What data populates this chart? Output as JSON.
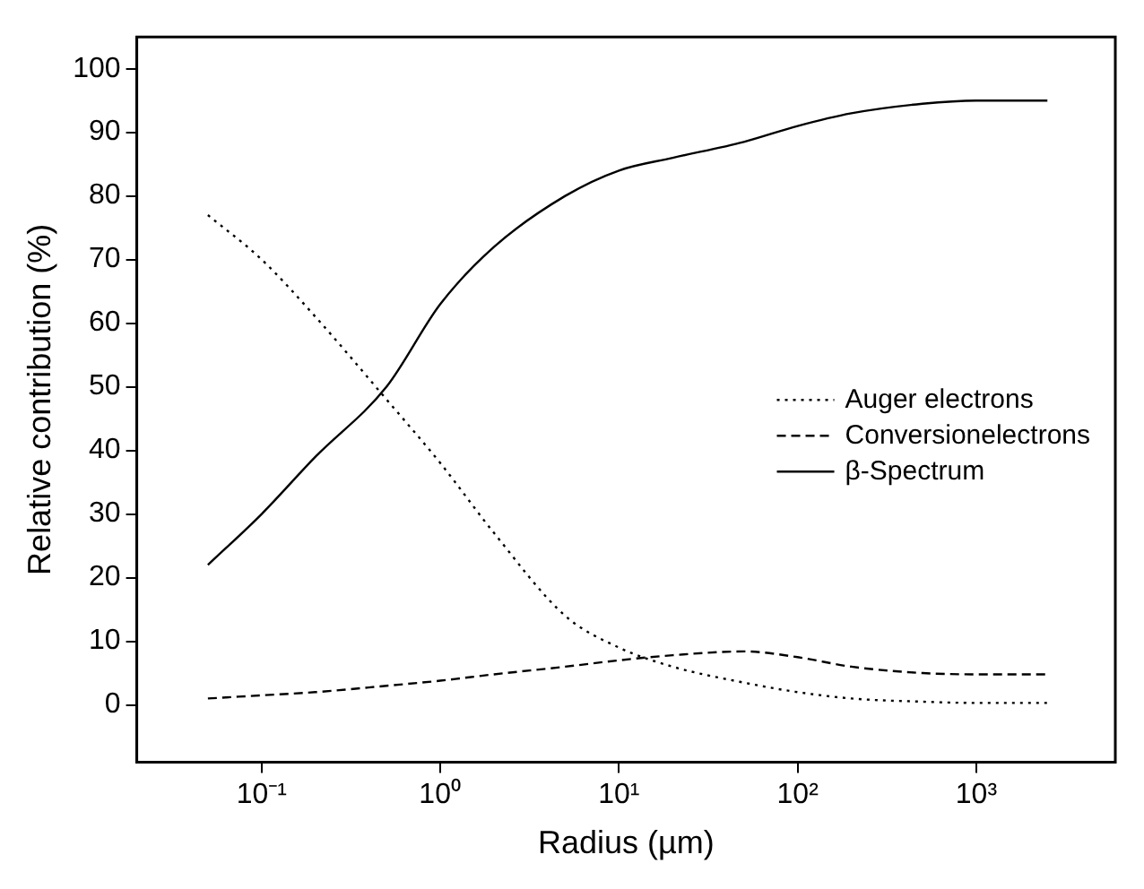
{
  "chart_data": {
    "type": "line",
    "xlabel": "Radius (µm)",
    "ylabel": "Relative contribution (%)",
    "log": "x",
    "grid": false,
    "legend": "right",
    "marker": "none",
    "x": [
      0.05,
      0.1,
      0.2,
      0.5,
      1,
      2,
      5,
      10,
      20,
      50,
      100,
      200,
      500,
      1000,
      2500
    ],
    "series": [
      {
        "name": "Auger electrons",
        "color": "#000000",
        "line_style": "dotted",
        "values": [
          77,
          70,
          61,
          48,
          38,
          27,
          14,
          9,
          6,
          3.5,
          2,
          1,
          0.5,
          0.3,
          0.3
        ]
      },
      {
        "name": "Conversionelectrons",
        "color": "#000000",
        "line_style": "dashed",
        "values": [
          1,
          1.5,
          2,
          3,
          3.8,
          4.8,
          6,
          7,
          7.8,
          8.4,
          7.5,
          6,
          5,
          4.8,
          4.8
        ]
      },
      {
        "name": "β-Spectrum",
        "color": "#000000",
        "line_style": "solid",
        "values": [
          22,
          30,
          39,
          50,
          63,
          72,
          80,
          84,
          86,
          88.5,
          91,
          93,
          94.5,
          95,
          95
        ]
      }
    ],
    "xlim": [
      0.02,
      6000
    ],
    "xticks": [
      {
        "value": 0.1,
        "label": "10⁻¹"
      },
      {
        "value": 1,
        "label": "10⁰"
      },
      {
        "value": 10,
        "label": "10¹"
      },
      {
        "value": 100,
        "label": "10²"
      },
      {
        "value": 1000,
        "label": "10³"
      }
    ],
    "ylim": [
      -9,
      105
    ],
    "yticks": [
      0,
      10,
      20,
      30,
      40,
      50,
      60,
      70,
      80,
      90,
      100
    ]
  }
}
